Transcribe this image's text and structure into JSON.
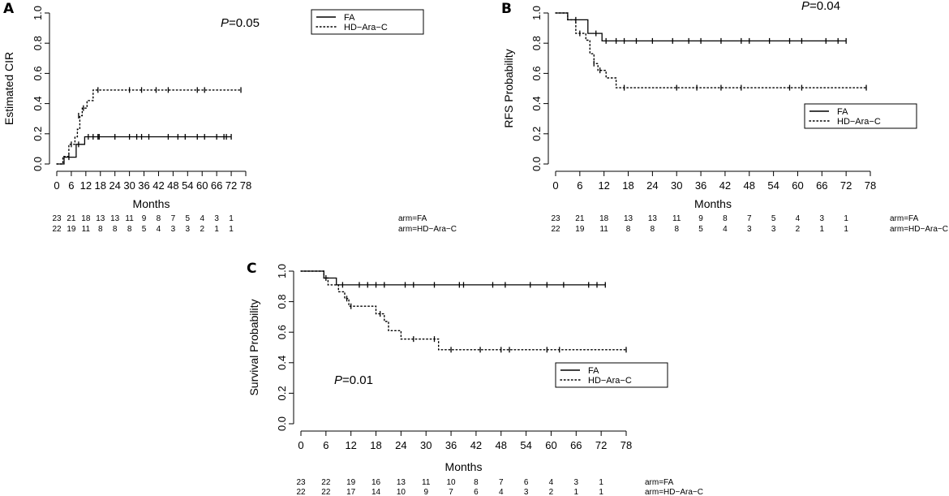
{
  "chart_data": [
    {
      "type": "line",
      "panel": "A",
      "ylabel": "Estimated CIR",
      "xlabel": "Months",
      "p_value": "P=0.05",
      "xticks": [
        0,
        6,
        12,
        18,
        24,
        30,
        36,
        42,
        48,
        54,
        60,
        66,
        72,
        78
      ],
      "yticks": [
        "0.0",
        "0.2",
        "0.4",
        "0.6",
        "0.8",
        "1.0"
      ],
      "xlim": [
        0,
        78
      ],
      "ylim": [
        0,
        1
      ],
      "legend": [
        {
          "label": "FA",
          "style": "solid"
        },
        {
          "label": "HD−Ara−C",
          "style": "dotted"
        }
      ],
      "series": [
        {
          "name": "FA",
          "style": "solid",
          "steps": [
            [
              0,
              0
            ],
            [
              3,
              0
            ],
            [
              3,
              0.045
            ],
            [
              8,
              0.045
            ],
            [
              8,
              0.13
            ],
            [
              11.5,
              0.13
            ],
            [
              11.5,
              0.18
            ],
            [
              72,
              0.18
            ]
          ],
          "censors": [
            [
              5,
              0.045
            ],
            [
              9,
              0.13
            ],
            [
              13,
              0.18
            ],
            [
              15,
              0.18
            ],
            [
              17,
              0.18
            ],
            [
              17.5,
              0.18
            ],
            [
              24,
              0.18
            ],
            [
              30,
              0.18
            ],
            [
              33,
              0.18
            ],
            [
              35,
              0.18
            ],
            [
              38,
              0.18
            ],
            [
              46,
              0.18
            ],
            [
              50,
              0.18
            ],
            [
              53,
              0.18
            ],
            [
              58,
              0.18
            ],
            [
              61,
              0.18
            ],
            [
              66,
              0.18
            ],
            [
              69,
              0.18
            ],
            [
              70,
              0.18
            ],
            [
              72,
              0.18
            ]
          ]
        },
        {
          "name": "HD−Ara−C",
          "style": "dotted",
          "steps": [
            [
              0,
              0
            ],
            [
              2.5,
              0
            ],
            [
              2.5,
              0.05
            ],
            [
              5,
              0.05
            ],
            [
              5,
              0.13
            ],
            [
              7.5,
              0.13
            ],
            [
              7.5,
              0.18
            ],
            [
              8.5,
              0.18
            ],
            [
              8.5,
              0.23
            ],
            [
              9.5,
              0.23
            ],
            [
              9.5,
              0.32
            ],
            [
              10.5,
              0.32
            ],
            [
              10.5,
              0.37
            ],
            [
              12.5,
              0.37
            ],
            [
              12.5,
              0.42
            ],
            [
              15,
              0.42
            ],
            [
              15,
              0.49
            ],
            [
              76,
              0.49
            ]
          ],
          "censors": [
            [
              6,
              0.13
            ],
            [
              9,
              0.32
            ],
            [
              11,
              0.37
            ],
            [
              17,
              0.49
            ],
            [
              30,
              0.49
            ],
            [
              35,
              0.49
            ],
            [
              41,
              0.49
            ],
            [
              46,
              0.49
            ],
            [
              58,
              0.49
            ],
            [
              61,
              0.49
            ],
            [
              76,
              0.49
            ]
          ]
        }
      ],
      "risk_table": {
        "rows": [
          {
            "label": "arm=FA",
            "values": [
              "23",
              "21",
              "18",
              "13",
              "13",
              "11",
              "9",
              "8",
              "7",
              "5",
              "4",
              "3",
              "1"
            ]
          },
          {
            "label": "arm=HD−Ara−C",
            "values": [
              "22",
              "19",
              "11",
              "8",
              "8",
              "8",
              "5",
              "4",
              "3",
              "3",
              "2",
              "1",
              "1"
            ]
          }
        ]
      }
    },
    {
      "type": "line",
      "panel": "B",
      "ylabel": "RFS Probability",
      "xlabel": "Months",
      "p_value": "P=0.04",
      "xticks": [
        0,
        6,
        12,
        18,
        24,
        30,
        36,
        42,
        48,
        54,
        60,
        66,
        72,
        78
      ],
      "yticks": [
        "0.0",
        "0.2",
        "0.4",
        "0.6",
        "0.8",
        "1.0"
      ],
      "xlim": [
        0,
        78
      ],
      "ylim": [
        0,
        1
      ],
      "legend": [
        {
          "label": "FA",
          "style": "solid"
        },
        {
          "label": "HD−Ara−C",
          "style": "dotted"
        }
      ],
      "series": [
        {
          "name": "FA",
          "style": "solid",
          "steps": [
            [
              0,
              1.0
            ],
            [
              3,
              1.0
            ],
            [
              3,
              0.955
            ],
            [
              8,
              0.955
            ],
            [
              8,
              0.865
            ],
            [
              11.5,
              0.865
            ],
            [
              11.5,
              0.815
            ],
            [
              72,
              0.815
            ]
          ],
          "censors": [
            [
              5,
              0.955
            ],
            [
              10,
              0.865
            ],
            [
              12.5,
              0.815
            ],
            [
              15,
              0.815
            ],
            [
              17,
              0.815
            ],
            [
              20,
              0.815
            ],
            [
              24,
              0.815
            ],
            [
              29,
              0.815
            ],
            [
              33,
              0.815
            ],
            [
              36,
              0.815
            ],
            [
              41,
              0.815
            ],
            [
              46,
              0.815
            ],
            [
              48,
              0.815
            ],
            [
              53,
              0.815
            ],
            [
              58,
              0.815
            ],
            [
              61,
              0.815
            ],
            [
              67,
              0.815
            ],
            [
              70,
              0.815
            ],
            [
              72,
              0.815
            ]
          ]
        },
        {
          "name": "HD−Ara−C",
          "style": "dotted",
          "steps": [
            [
              0,
              1.0
            ],
            [
              3,
              1.0
            ],
            [
              3,
              0.955
            ],
            [
              5,
              0.955
            ],
            [
              5,
              0.865
            ],
            [
              7.5,
              0.865
            ],
            [
              7.5,
              0.82
            ],
            [
              8.5,
              0.82
            ],
            [
              8.5,
              0.73
            ],
            [
              9.5,
              0.73
            ],
            [
              9.5,
              0.665
            ],
            [
              10.5,
              0.665
            ],
            [
              10.5,
              0.62
            ],
            [
              12.5,
              0.62
            ],
            [
              12.5,
              0.57
            ],
            [
              15,
              0.57
            ],
            [
              15,
              0.505
            ],
            [
              77,
              0.505
            ]
          ],
          "censors": [
            [
              6,
              0.865
            ],
            [
              9.5,
              0.665
            ],
            [
              11,
              0.62
            ],
            [
              17,
              0.505
            ],
            [
              30,
              0.505
            ],
            [
              35,
              0.505
            ],
            [
              41,
              0.505
            ],
            [
              46,
              0.505
            ],
            [
              58,
              0.505
            ],
            [
              61,
              0.505
            ],
            [
              77,
              0.505
            ]
          ]
        }
      ],
      "risk_table": {
        "rows": [
          {
            "label": "arm=FA",
            "values": [
              "23",
              "21",
              "18",
              "13",
              "13",
              "11",
              "9",
              "8",
              "7",
              "5",
              "4",
              "3",
              "1"
            ]
          },
          {
            "label": "arm=HD−Ara−C",
            "values": [
              "22",
              "19",
              "11",
              "8",
              "8",
              "8",
              "5",
              "4",
              "3",
              "3",
              "2",
              "1",
              "1"
            ]
          }
        ]
      }
    },
    {
      "type": "line",
      "panel": "C",
      "ylabel": "Survival Probability",
      "xlabel": "Months",
      "p_value": "P=0.01",
      "xticks": [
        0,
        6,
        12,
        18,
        24,
        30,
        36,
        42,
        48,
        54,
        60,
        66,
        72,
        78
      ],
      "yticks": [
        "0.0",
        "0.2",
        "0.4",
        "0.6",
        "0.8",
        "1.0"
      ],
      "xlim": [
        0,
        78
      ],
      "ylim": [
        0,
        1
      ],
      "legend": [
        {
          "label": "FA",
          "style": "solid"
        },
        {
          "label": "HD−Ara−C",
          "style": "dotted"
        }
      ],
      "series": [
        {
          "name": "FA",
          "style": "solid",
          "steps": [
            [
              0,
              1.0
            ],
            [
              5.5,
              1.0
            ],
            [
              5.5,
              0.955
            ],
            [
              8.5,
              0.955
            ],
            [
              8.5,
              0.91
            ],
            [
              73,
              0.91
            ]
          ],
          "censors": [
            [
              6,
              0.955
            ],
            [
              10,
              0.91
            ],
            [
              14,
              0.91
            ],
            [
              16,
              0.91
            ],
            [
              18,
              0.91
            ],
            [
              20,
              0.91
            ],
            [
              25,
              0.91
            ],
            [
              27,
              0.91
            ],
            [
              32,
              0.91
            ],
            [
              38,
              0.91
            ],
            [
              39,
              0.91
            ],
            [
              46,
              0.91
            ],
            [
              49,
              0.91
            ],
            [
              55,
              0.91
            ],
            [
              59,
              0.91
            ],
            [
              63,
              0.91
            ],
            [
              69,
              0.91
            ],
            [
              71,
              0.91
            ],
            [
              73,
              0.91
            ]
          ]
        },
        {
          "name": "HD−Ara−C",
          "style": "dotted",
          "steps": [
            [
              0,
              1.0
            ],
            [
              5.5,
              1.0
            ],
            [
              5.5,
              0.955
            ],
            [
              6.5,
              0.955
            ],
            [
              6.5,
              0.91
            ],
            [
              9,
              0.91
            ],
            [
              9,
              0.865
            ],
            [
              10.5,
              0.865
            ],
            [
              10.5,
              0.82
            ],
            [
              11.5,
              0.82
            ],
            [
              11.5,
              0.77
            ],
            [
              18,
              0.77
            ],
            [
              18,
              0.72
            ],
            [
              20,
              0.72
            ],
            [
              20,
              0.67
            ],
            [
              21,
              0.67
            ],
            [
              21,
              0.61
            ],
            [
              24,
              0.61
            ],
            [
              24,
              0.555
            ],
            [
              33,
              0.555
            ],
            [
              33,
              0.485
            ],
            [
              78,
              0.485
            ]
          ],
          "censors": [
            [
              11,
              0.82
            ],
            [
              12,
              0.77
            ],
            [
              19,
              0.72
            ],
            [
              27,
              0.555
            ],
            [
              32,
              0.555
            ],
            [
              36,
              0.485
            ],
            [
              43,
              0.485
            ],
            [
              48,
              0.485
            ],
            [
              50,
              0.485
            ],
            [
              59,
              0.485
            ],
            [
              62,
              0.485
            ],
            [
              78,
              0.485
            ]
          ]
        }
      ],
      "risk_table": {
        "rows": [
          {
            "label": "arm=FA",
            "values": [
              "23",
              "22",
              "19",
              "16",
              "13",
              "11",
              "10",
              "8",
              "7",
              "6",
              "4",
              "3",
              "1"
            ]
          },
          {
            "label": "arm=HD−Ara−C",
            "values": [
              "22",
              "22",
              "17",
              "14",
              "10",
              "9",
              "7",
              "6",
              "4",
              "3",
              "2",
              "1",
              "1"
            ]
          }
        ]
      }
    }
  ]
}
